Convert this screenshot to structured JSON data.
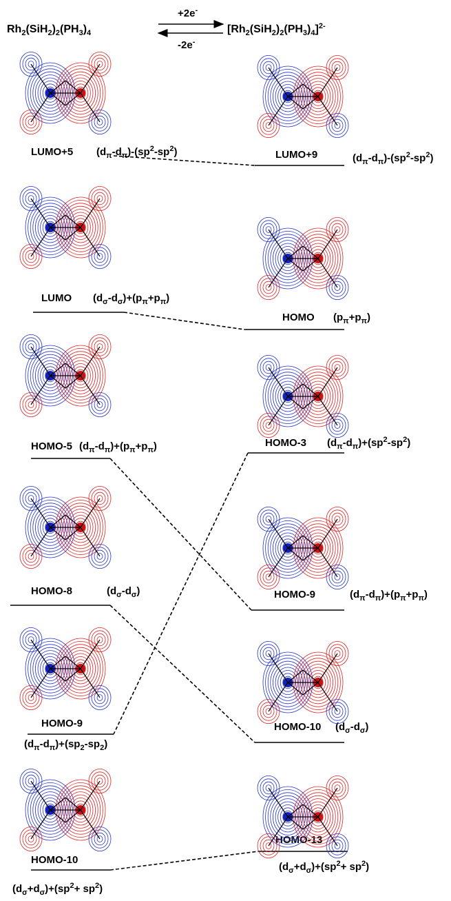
{
  "header": {
    "left": [
      "Rh",
      {
        "sub": "2"
      },
      "(SiH",
      {
        "sub": "2"
      },
      ")",
      {
        "sub": "2"
      },
      "(PH",
      {
        "sub": "3"
      },
      ")",
      {
        "sub": "4"
      }
    ],
    "right": [
      "[Rh",
      {
        "sub": "2"
      },
      "(SiH",
      {
        "sub": "2"
      },
      ")",
      {
        "sub": "2"
      },
      "(PH",
      {
        "sub": "3"
      },
      ")",
      {
        "sub": "4"
      },
      "]",
      {
        "sup": "2-"
      }
    ],
    "arrow_top": [
      "+2e",
      {
        "sup": "-"
      }
    ],
    "arrow_bottom": [
      "-2e",
      {
        "sup": "-"
      }
    ]
  },
  "left_levels": [
    {
      "name": "LUMO+5",
      "description": [
        "(d",
        {
          "sub": "π"
        },
        "-d",
        {
          "sub": "π"
        },
        ")-(sp",
        {
          "sup": "2"
        },
        "-sp",
        {
          "sup": "2"
        },
        ")"
      ]
    },
    {
      "name": "LUMO",
      "description": [
        "(d",
        {
          "sub": "σ"
        },
        "-d",
        {
          "sub": "σ"
        },
        ")+(p",
        {
          "sub": "π"
        },
        "+p",
        {
          "sub": "π"
        },
        ")"
      ]
    },
    {
      "name": "HOMO-5",
      "description": [
        "(d",
        {
          "sub": "π"
        },
        "-d",
        {
          "sub": "π"
        },
        ")+(p",
        {
          "sub": "π"
        },
        "+p",
        {
          "sub": "π"
        },
        ")"
      ]
    },
    {
      "name": "HOMO-8",
      "description": [
        "(d",
        {
          "sub": "σ"
        },
        "-d",
        {
          "sub": "σ"
        },
        ")"
      ]
    },
    {
      "name": "HOMO-9",
      "description": [
        "(d",
        {
          "sub": "π"
        },
        "-d",
        {
          "sub": "π"
        },
        ")+(sp",
        {
          "sub": "2"
        },
        "-sp",
        {
          "sub": "2"
        },
        ")"
      ]
    },
    {
      "name": "HOMO-10",
      "description": [
        "(d",
        {
          "sub": "σ"
        },
        "+d",
        {
          "sub": "σ"
        },
        ")+(sp",
        {
          "sup": "2"
        },
        "+ sp",
        {
          "sup": "2"
        },
        ")"
      ]
    }
  ],
  "right_levels": [
    {
      "name": "LUMO+9",
      "description": [
        "(d",
        {
          "sub": "π"
        },
        "-d",
        {
          "sub": "π"
        },
        ")-(sp",
        {
          "sup": "2"
        },
        "-sp",
        {
          "sup": "2"
        },
        ")"
      ]
    },
    {
      "name": "HOMO",
      "description": [
        "(p",
        {
          "sub": "π"
        },
        "+p",
        {
          "sub": "π"
        },
        ")"
      ]
    },
    {
      "name": "HOMO-3",
      "description": [
        "(d",
        {
          "sub": "π"
        },
        "-d",
        {
          "sub": "π"
        },
        ")+(sp",
        {
          "sup": "2"
        },
        "-sp",
        {
          "sup": "2"
        },
        ")"
      ]
    },
    {
      "name": "HOMO-9",
      "description": [
        "(d",
        {
          "sub": "π"
        },
        "-d",
        {
          "sub": "π"
        },
        ")+(p",
        {
          "sub": "π"
        },
        "+p",
        {
          "sub": "π"
        },
        ")"
      ]
    },
    {
      "name": "HOMO-10",
      "description": [
        "(d",
        {
          "sub": "σ"
        },
        "-d",
        {
          "sub": "σ"
        },
        ")"
      ]
    },
    {
      "name": "HOMO-13",
      "description": [
        "(d",
        {
          "sub": "σ"
        },
        "+d",
        {
          "sub": "σ"
        },
        ")+(sp",
        {
          "sup": "2"
        },
        "+ sp",
        {
          "sup": "2"
        },
        ")"
      ]
    }
  ]
}
